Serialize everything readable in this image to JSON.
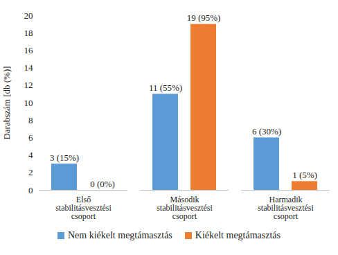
{
  "chart_data": {
    "type": "bar",
    "y_label": "Darabszám [db (%)]",
    "categories": [
      "Első stabilitásvesztési csoport",
      "Második stabilitásvesztési csoport",
      "Harmadik stabilitásvesztési csoport"
    ],
    "series": [
      {
        "name": "Nem kiékelt megtámasztás",
        "color": "#5b9bd5",
        "values": [
          3,
          11,
          6
        ],
        "value_labels": [
          "3 (15%)",
          "11 (55%)",
          "6 (30%)"
        ]
      },
      {
        "name": "Kiékelt megtámasztás",
        "color": "#ed7d31",
        "values": [
          0,
          19,
          1
        ],
        "value_labels": [
          "0 (0%)",
          "19 (95%)",
          "1 (5%)"
        ]
      }
    ],
    "ylim": [
      0,
      20
    ],
    "yticks": [
      0,
      2,
      4,
      6,
      8,
      10,
      12,
      14,
      16,
      18,
      20
    ],
    "grid": false,
    "data_labels": true,
    "legend": "bottom"
  }
}
